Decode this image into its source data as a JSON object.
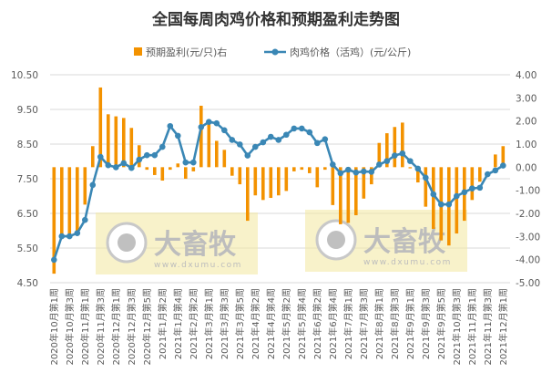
{
  "chart_data": {
    "type": "bar+line",
    "title": "全国每周肉鸡价格和预期盈利走势图",
    "legend": [
      "预期盈利(元/只)右",
      "肉鸡价格（活鸡）(元/公斤)"
    ],
    "legend_position": "top-center",
    "left_axis": {
      "min": 4.5,
      "max": 10.5,
      "ticks": [
        "4.50",
        "5.50",
        "6.50",
        "7.50",
        "8.50",
        "9.50",
        "10.50"
      ]
    },
    "right_axis": {
      "min": -5,
      "max": 4,
      "ticks": [
        "-5.00",
        "-4.00",
        "-3.00",
        "-2.00",
        "-1.00",
        "0.00",
        "1.00",
        "2.00",
        "3.00",
        "4.00"
      ]
    },
    "x_tick_labels": [
      "2020年10月第1周",
      "2020年10月第3周",
      "2020年11月第1周",
      "2020年11月第3周",
      "2020年12月第1周",
      "2020年12月第3周",
      "2020年12月第5周",
      "2021年1月第2周",
      "2021年1月第4周",
      "2021年2月第2周",
      "2021年3月第1周",
      "2021年3月第3周",
      "2021年3月第5周",
      "2021年4月第2周",
      "2021年4月第4周",
      "2021年5月第2周",
      "2021年5月第4周",
      "2021年6月第2周",
      "2021年6月第4周",
      "2021年7月第1周",
      "2021年7月第3周",
      "2021年8月第1周",
      "2021年8月第3周",
      "2021年9月第1周",
      "2021年9月第3周",
      "2021年9月第5周",
      "2021年10月第3周",
      "2021年11月第1周",
      "2021年11月第3周",
      "2021年12月第1周"
    ],
    "series": [
      {
        "name": "预期盈利(元/只)右",
        "axis": "right",
        "kind": "bar",
        "color": "#F39200",
        "values": [
          -4.61,
          -2.95,
          -2.95,
          -2.75,
          -1.62,
          0.91,
          3.45,
          2.29,
          2.2,
          2.13,
          1.7,
          0.95,
          -0.11,
          -0.34,
          -0.58,
          -0.11,
          0.16,
          -0.5,
          -0.18,
          2.66,
          1.87,
          1.14,
          0.75,
          -0.37,
          -0.74,
          -2.32,
          -1.22,
          -1.42,
          -1.33,
          -1.22,
          -1.03,
          -0.18,
          -0.11,
          -0.26,
          -0.87,
          -0.11,
          -1.64,
          -2.47,
          -2.41,
          -2.08,
          -1.36,
          -0.74,
          1.05,
          1.47,
          1.74,
          1.93,
          -0.05,
          -0.66,
          -1.71,
          -2.67,
          -3.17,
          -3.39,
          -2.87,
          -2.32,
          -1.42,
          -0.63,
          0.0,
          0.55,
          0.91
        ]
      },
      {
        "name": "肉鸡价格（活鸡）(元/公斤)",
        "axis": "left",
        "kind": "line",
        "color": "#3A87B5",
        "values": [
          5.16,
          5.84,
          5.84,
          5.93,
          6.31,
          7.32,
          8.13,
          7.89,
          7.83,
          7.95,
          7.81,
          8.05,
          8.18,
          8.18,
          8.42,
          9.02,
          8.74,
          7.97,
          7.97,
          8.99,
          9.14,
          9.1,
          8.9,
          8.62,
          8.49,
          8.17,
          8.42,
          8.55,
          8.71,
          8.62,
          8.77,
          8.95,
          8.95,
          8.84,
          8.53,
          8.64,
          7.91,
          7.66,
          7.76,
          7.68,
          7.71,
          7.7,
          7.91,
          8.01,
          8.17,
          8.23,
          8.01,
          7.79,
          7.53,
          7.05,
          6.76,
          6.76,
          7.0,
          7.11,
          7.22,
          7.24,
          7.63,
          7.74,
          7.88
        ]
      }
    ],
    "grid": true
  },
  "watermark": {
    "brand": "大畜牧",
    "url": "www.dxumu.com"
  }
}
